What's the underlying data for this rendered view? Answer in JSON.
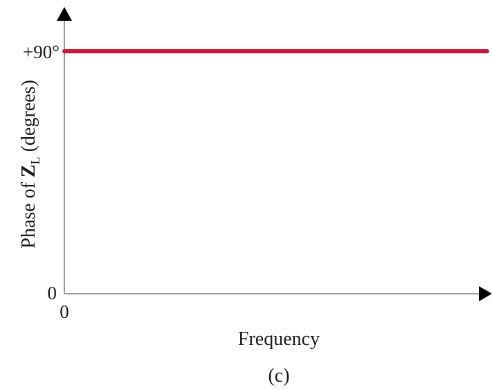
{
  "chart_data": {
    "type": "line",
    "xlabel": "Frequency",
    "ylabel": {
      "prefix": "Phase of ",
      "symbol": "Z",
      "subscript": "L",
      "suffix": " (degrees)"
    },
    "x_tick_labels": [
      "0"
    ],
    "y_tick_labels": [
      "0",
      "+90°"
    ],
    "ylim": [
      0,
      90
    ],
    "xlim": [
      0,
      1
    ],
    "series": [
      {
        "color": "#c8193c",
        "x": [
          0,
          1
        ],
        "y": [
          90,
          90
        ]
      }
    ],
    "caption": "(c)",
    "grid": false,
    "axis_color": "#9a9a9a",
    "arrow_color": "#000000"
  }
}
